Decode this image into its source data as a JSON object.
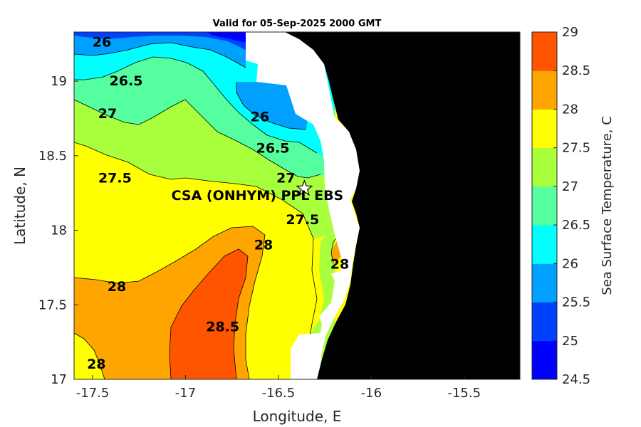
{
  "chart_data": {
    "type": "heatmap",
    "title": "Valid for 05-Sep-2025 2000 GMT",
    "xlabel": "Longitude, E",
    "ylabel": "Latitude, N",
    "colorbar_label": "Sea Surface Temperature, C",
    "xlim": [
      -17.6,
      -15.2
    ],
    "ylim": [
      17.0,
      19.33
    ],
    "x_ticks": [
      "-17.5",
      "-17",
      "-16.5",
      "-16",
      "-15.5"
    ],
    "y_ticks": [
      "17",
      "17.5",
      "18",
      "18.5",
      "19"
    ],
    "colorbar_range": [
      24.5,
      29.0
    ],
    "colorbar_ticks": [
      "24.5",
      "25",
      "25.5",
      "26",
      "26.5",
      "27",
      "27.5",
      "28",
      "28.5",
      "29"
    ],
    "colorbar_colors": [
      "#0000ff",
      "#0040ff",
      "#00a0ff",
      "#00ffff",
      "#55ff9f",
      "#a8ff3c",
      "#ffff00",
      "#ffa500",
      "#ff5500"
    ],
    "land_color": "#000000",
    "nodata_color": "#ffffff",
    "contour_labels": [
      {
        "text": "26",
        "lon": -17.45,
        "lat": 19.26
      },
      {
        "text": "26.5",
        "lon": -17.32,
        "lat": 19.0
      },
      {
        "text": "27",
        "lon": -17.42,
        "lat": 18.78
      },
      {
        "text": "26",
        "lon": -16.6,
        "lat": 18.76
      },
      {
        "text": "26.5",
        "lon": -16.53,
        "lat": 18.55
      },
      {
        "text": "27",
        "lon": -16.46,
        "lat": 18.35
      },
      {
        "text": "27.5",
        "lon": -17.38,
        "lat": 18.35
      },
      {
        "text": "27.5",
        "lon": -16.37,
        "lat": 18.07
      },
      {
        "text": "28",
        "lon": -16.58,
        "lat": 17.9
      },
      {
        "text": "28",
        "lon": -16.17,
        "lat": 17.77
      },
      {
        "text": "28",
        "lon": -17.37,
        "lat": 17.62
      },
      {
        "text": "28.5",
        "lon": -16.8,
        "lat": 17.35
      },
      {
        "text": "28",
        "lon": -17.48,
        "lat": 17.1
      }
    ],
    "site": {
      "name": "CSA (ONHYM) PPL EBS",
      "lon": -16.36,
      "lat": 18.28,
      "marker": "star"
    }
  }
}
